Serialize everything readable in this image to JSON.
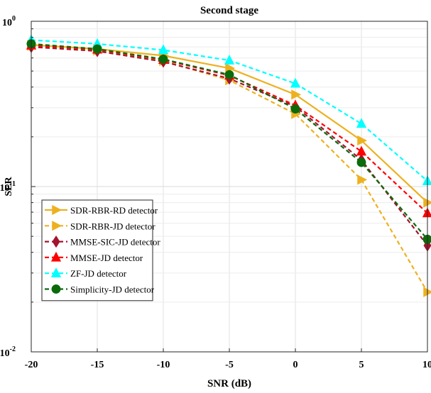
{
  "chart_data": {
    "type": "line",
    "title": "Second stage",
    "xlabel": "SNR (dB)",
    "ylabel": "SER",
    "x": [
      -20,
      -15,
      -10,
      -5,
      0,
      5,
      10
    ],
    "xlim": [
      -20,
      10
    ],
    "ylim": [
      0.01,
      1
    ],
    "yscale": "log",
    "grid": true,
    "legend_position": "bottom-left",
    "x_tick_labels": [
      "-20",
      "-15",
      "-10",
      "-5",
      "0",
      "5",
      "10"
    ],
    "y_tick_labels": [
      {
        "base": "10",
        "exp": "0",
        "value": 1
      },
      {
        "base": "10",
        "exp": "-1",
        "value": 0.1
      },
      {
        "base": "10",
        "exp": "-2",
        "value": 0.01
      }
    ],
    "series": [
      {
        "name": "SDR-RBR-RD detector",
        "color": "#EDB120",
        "dash": "solid",
        "marker": "triangle-right",
        "values": [
          0.72,
          0.68,
          0.62,
          0.52,
          0.36,
          0.19,
          0.08
        ]
      },
      {
        "name": "SDR-RBR-JD detector",
        "color": "#EDB120",
        "dash": "dashed",
        "marker": "triangle-right",
        "values": [
          0.71,
          0.665,
          0.575,
          0.44,
          0.275,
          0.11,
          0.023
        ]
      },
      {
        "name": "MMSE-SIC-JD detector",
        "color": "#A2142F",
        "dash": "dashed",
        "marker": "diamond",
        "values": [
          0.7,
          0.66,
          0.57,
          0.45,
          0.305,
          0.145,
          0.044
        ]
      },
      {
        "name": "MMSE-JD detector",
        "color": "#FF0000",
        "dash": "dashed",
        "marker": "triangle-up",
        "values": [
          0.715,
          0.675,
          0.585,
          0.47,
          0.31,
          0.163,
          0.069
        ]
      },
      {
        "name": "ZF-JD detector",
        "color": "#00FFFF",
        "dash": "dashed",
        "marker": "triangle-up",
        "values": [
          0.77,
          0.73,
          0.67,
          0.58,
          0.42,
          0.24,
          0.108
        ]
      },
      {
        "name": "Simplicity-JD detector",
        "color": "#0B6B0B",
        "dash": "dashed",
        "marker": "circle",
        "values": [
          0.73,
          0.68,
          0.59,
          0.475,
          0.295,
          0.14,
          0.048
        ]
      }
    ]
  }
}
